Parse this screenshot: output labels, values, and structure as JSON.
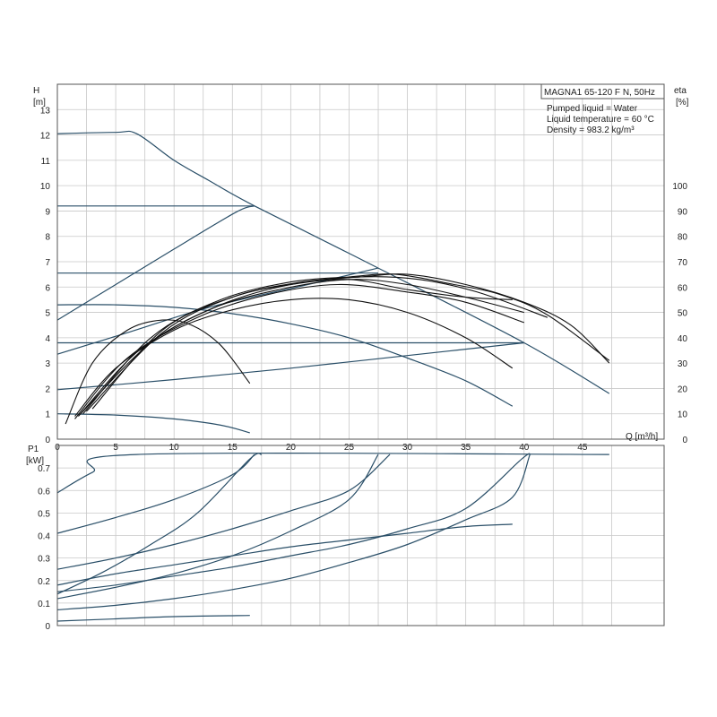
{
  "chart_data": [
    {
      "type": "line",
      "title": "MAGNA1 65-120 F N, 50Hz",
      "annotations": [
        "Pumped liquid = Water",
        "Liquid temperature = 60 °C",
        "Density = 983.2 kg/m³"
      ],
      "y_axis_label": [
        "H",
        "[m]"
      ],
      "y2_axis_label": [
        "eta",
        "[%]"
      ],
      "x_axis_label": "Q [m³/h]",
      "xlim": [
        0,
        52
      ],
      "ylim": [
        0,
        14
      ],
      "y2lim": [
        0,
        140
      ],
      "x_ticks": [
        0,
        5,
        10,
        15,
        20,
        25,
        30,
        35,
        40,
        45
      ],
      "y_ticks": [
        0,
        1,
        2,
        3,
        4,
        5,
        6,
        7,
        8,
        9,
        10,
        11,
        12,
        13
      ],
      "y2_ticks": [
        0,
        10,
        20,
        30,
        40,
        50,
        60,
        70,
        80,
        90,
        100
      ],
      "grid": true,
      "head_curves": [
        {
          "points": [
            [
              0,
              12.05
            ],
            [
              5,
              12.1
            ],
            [
              6.8,
              12.05
            ],
            [
              10,
              11
            ],
            [
              13,
              10.2
            ],
            [
              16.9,
              9.2
            ],
            [
              27.5,
              6.75
            ],
            [
              40,
              3.8
            ],
            [
              47.3,
              1.8
            ]
          ]
        },
        {
          "points": [
            [
              0,
              9.2
            ],
            [
              16.9,
              9.2
            ]
          ]
        },
        {
          "points": [
            [
              0,
              4.7
            ],
            [
              5,
              6.1
            ],
            [
              10,
              7.5
            ],
            [
              15.3,
              8.95
            ],
            [
              16.9,
              9.2
            ]
          ]
        },
        {
          "points": [
            [
              0,
              6.55
            ],
            [
              27.5,
              6.55
            ]
          ]
        },
        {
          "points": [
            [
              0,
              3.35
            ],
            [
              6,
              4.2
            ],
            [
              13,
              5.2
            ],
            [
              21,
              6.05
            ],
            [
              27.5,
              6.75
            ]
          ]
        },
        {
          "points": [
            [
              0,
              3.8
            ],
            [
              40,
              3.8
            ]
          ]
        },
        {
          "points": [
            [
              0,
              1.95
            ],
            [
              10,
              2.35
            ],
            [
              20,
              2.8
            ],
            [
              30,
              3.3
            ],
            [
              40,
              3.8
            ]
          ]
        },
        {
          "points": [
            [
              0,
              5.3
            ],
            [
              5,
              5.3
            ],
            [
              10,
              5.2
            ],
            [
              15,
              4.95
            ],
            [
              20,
              4.55
            ],
            [
              25,
              4.0
            ],
            [
              30,
              3.2
            ],
            [
              35,
              2.3
            ],
            [
              39,
              1.3
            ]
          ]
        },
        {
          "points": [
            [
              0,
              1.0
            ],
            [
              5,
              0.95
            ],
            [
              10,
              0.8
            ],
            [
              14,
              0.55
            ],
            [
              16.5,
              0.25
            ]
          ]
        }
      ],
      "efficiency_curves": [
        {
          "points": [
            [
              0.7,
              6
            ],
            [
              3,
              30
            ],
            [
              6,
              43
            ],
            [
              9,
              47
            ],
            [
              11.5,
              45
            ],
            [
              14,
              37
            ],
            [
              16.5,
              22
            ]
          ]
        },
        {
          "points": [
            [
              1.5,
              9
            ],
            [
              5,
              28
            ],
            [
              10,
              43
            ],
            [
              15,
              51
            ],
            [
              20,
              55
            ],
            [
              25,
              55
            ],
            [
              30,
              50
            ],
            [
              35,
              40
            ],
            [
              39,
              28
            ]
          ]
        },
        {
          "points": [
            [
              1.5,
              8
            ],
            [
              6,
              32
            ],
            [
              12,
              48
            ],
            [
              18,
              57
            ],
            [
              24,
              61
            ],
            [
              30,
              58
            ],
            [
              35,
              54
            ],
            [
              40,
              46
            ]
          ]
        },
        {
          "points": [
            [
              1.8,
              9
            ],
            [
              7,
              35
            ],
            [
              13,
              51
            ],
            [
              19,
              59
            ],
            [
              25,
              63
            ],
            [
              30,
              61
            ],
            [
              35,
              56
            ],
            [
              40,
              50
            ]
          ]
        },
        {
          "points": [
            [
              2,
              10
            ],
            [
              8,
              38
            ],
            [
              14,
              53
            ],
            [
              20,
              61
            ],
            [
              26,
              64
            ],
            [
              31,
              63
            ],
            [
              36,
              58
            ],
            [
              42,
              48
            ]
          ]
        },
        {
          "points": [
            [
              2.2,
              10
            ],
            [
              8,
              40
            ],
            [
              14,
              55
            ],
            [
              20,
              62
            ],
            [
              25,
              64
            ],
            [
              29,
              65
            ],
            [
              34,
              61
            ],
            [
              38,
              57
            ],
            [
              42,
              49
            ],
            [
              47.3,
              31
            ]
          ]
        },
        {
          "points": [
            [
              2.5,
              11
            ],
            [
              9,
              42
            ],
            [
              15,
              56
            ],
            [
              21,
              62
            ],
            [
              26,
              64
            ],
            [
              30,
              65
            ],
            [
              35,
              61
            ],
            [
              40,
              54
            ],
            [
              44,
              45
            ],
            [
              47.3,
              30
            ]
          ]
        },
        {
          "points": [
            [
              3,
              12
            ],
            [
              9,
              43
            ],
            [
              15,
              56
            ],
            [
              20,
              61
            ],
            [
              25,
              63
            ],
            [
              30,
              59
            ],
            [
              35,
              56
            ],
            [
              39,
              55
            ]
          ]
        }
      ]
    },
    {
      "type": "line",
      "y_axis_label": [
        "P1",
        "[kW]"
      ],
      "xlim": [
        0,
        52
      ],
      "ylim": [
        0,
        0.8
      ],
      "x_ticks": [
        0,
        5,
        10,
        15,
        20,
        25,
        30,
        35,
        40,
        45
      ],
      "y_ticks": [
        0,
        0.1,
        0.2,
        0.3,
        0.4,
        0.5,
        0.6,
        0.7
      ],
      "grid": true,
      "power_curves": [
        {
          "points": [
            [
              0,
              0.59
            ],
            [
              3,
              0.68
            ],
            [
              6.8,
              0.76
            ],
            [
              47.3,
              0.76
            ]
          ]
        },
        {
          "points": [
            [
              0,
              0.41
            ],
            [
              5,
              0.48
            ],
            [
              10,
              0.56
            ],
            [
              15,
              0.67
            ],
            [
              16.9,
              0.76
            ]
          ]
        },
        {
          "points": [
            [
              0,
              0.25
            ],
            [
              5,
              0.3
            ],
            [
              10,
              0.36
            ],
            [
              15,
              0.43
            ],
            [
              20,
              0.51
            ],
            [
              25,
              0.6
            ],
            [
              28.5,
              0.76
            ]
          ]
        },
        {
          "points": [
            [
              0,
              0.15
            ],
            [
              5,
              0.18
            ],
            [
              10,
              0.22
            ],
            [
              15,
              0.26
            ],
            [
              20,
              0.31
            ],
            [
              25,
              0.36
            ],
            [
              30,
              0.43
            ],
            [
              35,
              0.52
            ],
            [
              39.8,
              0.74
            ],
            [
              40.5,
              0.76
            ]
          ]
        },
        {
          "points": [
            [
              0,
              0.14
            ],
            [
              4,
              0.24
            ],
            [
              8,
              0.36
            ],
            [
              12,
              0.5
            ],
            [
              16.5,
              0.74
            ],
            [
              17.5,
              0.76
            ]
          ]
        },
        {
          "points": [
            [
              0,
              0.12
            ],
            [
              5,
              0.17
            ],
            [
              10,
              0.23
            ],
            [
              15,
              0.31
            ],
            [
              20,
              0.42
            ],
            [
              25,
              0.56
            ],
            [
              27.5,
              0.76
            ]
          ]
        },
        {
          "points": [
            [
              0,
              0.07
            ],
            [
              5,
              0.09
            ],
            [
              10,
              0.12
            ],
            [
              15,
              0.16
            ],
            [
              20,
              0.21
            ],
            [
              25,
              0.28
            ],
            [
              30,
              0.36
            ],
            [
              35,
              0.47
            ],
            [
              39,
              0.57
            ],
            [
              40.5,
              0.76
            ]
          ]
        },
        {
          "points": [
            [
              0,
              0.18
            ],
            [
              5,
              0.23
            ],
            [
              10,
              0.27
            ],
            [
              15,
              0.31
            ],
            [
              20,
              0.35
            ],
            [
              25,
              0.38
            ],
            [
              30,
              0.41
            ],
            [
              35,
              0.44
            ],
            [
              39,
              0.45
            ]
          ]
        },
        {
          "points": [
            [
              0,
              0.02
            ],
            [
              5,
              0.03
            ],
            [
              10,
              0.04
            ],
            [
              16.5,
              0.045
            ]
          ]
        }
      ]
    }
  ]
}
